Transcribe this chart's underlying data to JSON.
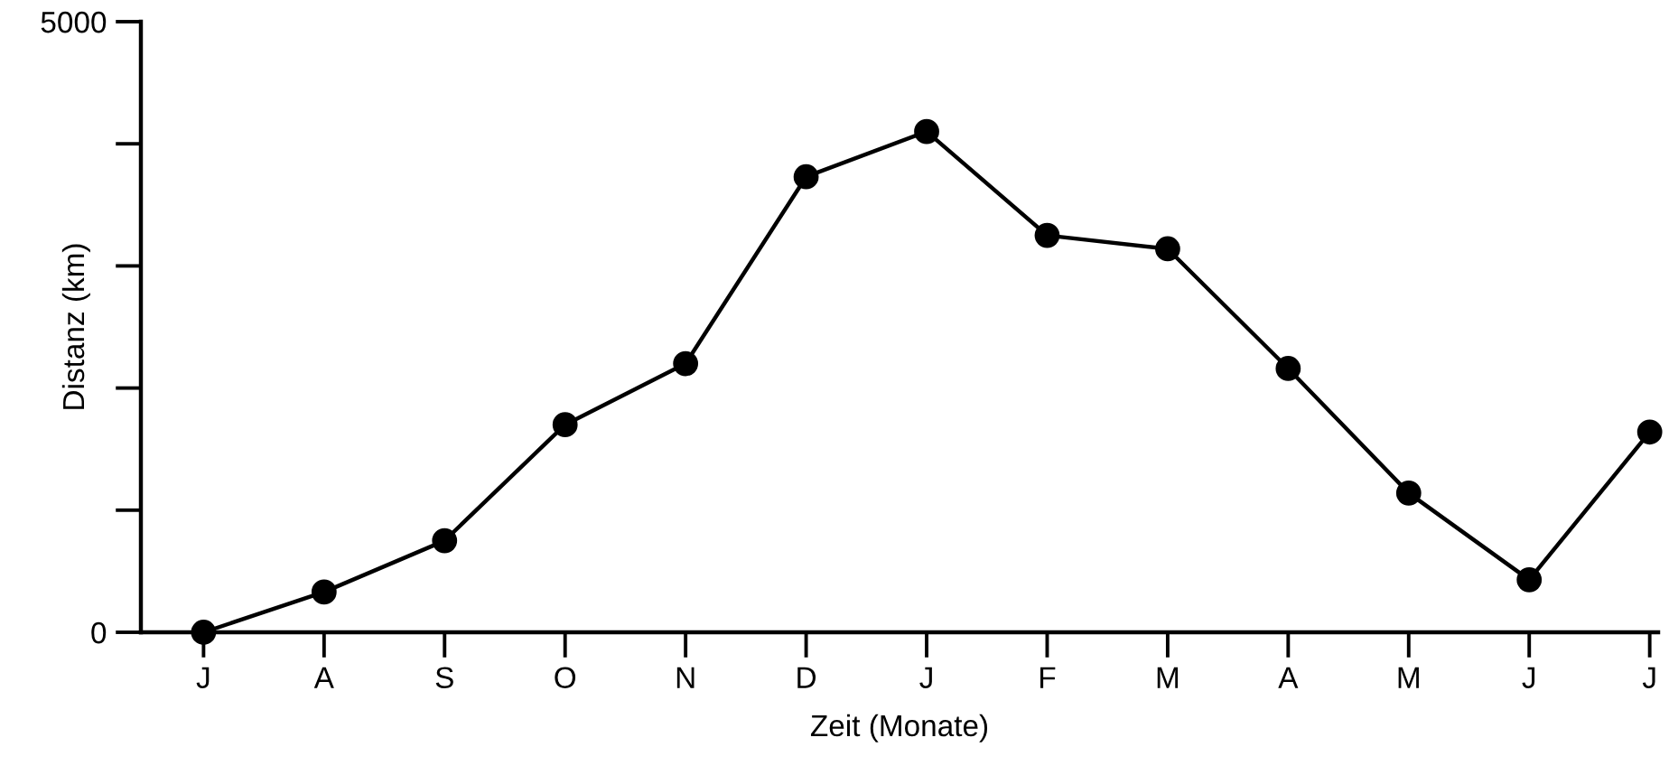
{
  "chart_data": {
    "type": "line",
    "xlabel": "Zeit (Monate)",
    "ylabel": "Distanz (km)",
    "categories": [
      "J",
      "A",
      "S",
      "O",
      "N",
      "D",
      "J",
      "F",
      "M",
      "A",
      "M",
      "J",
      "J"
    ],
    "series": [
      {
        "color": "#000000",
        "values": [
          0,
          330,
          750,
          1700,
          2200,
          3730,
          4100,
          3250,
          3140,
          2160,
          1140,
          430,
          1640
        ]
      }
    ],
    "ylim": [
      0,
      5000
    ],
    "yticks": [
      0,
      {
        "value": 1000,
        "label": null
      },
      {
        "value": 2000,
        "label": null
      },
      {
        "value": 3000,
        "label": null
      },
      {
        "value": 4000,
        "label": null
      },
      5000
    ],
    "marker": "circle",
    "line_style": "solid",
    "grid": false,
    "legend": false
  }
}
